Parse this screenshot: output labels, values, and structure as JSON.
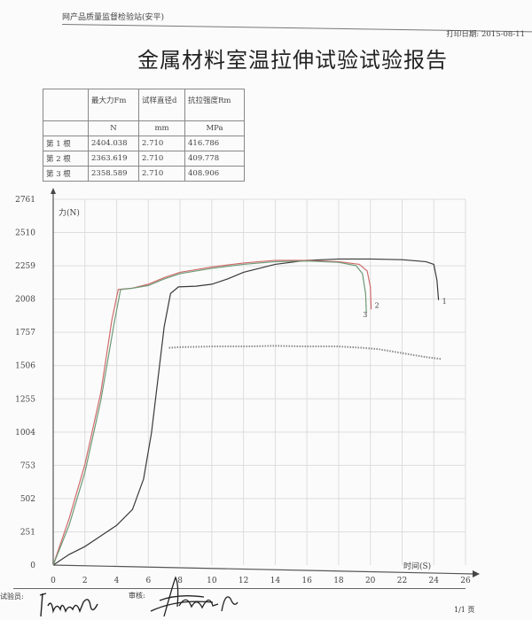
{
  "header": {
    "organization": "网产品质量监督检验站(安平)",
    "print_date": "打印日期: 2015-08-11",
    "title": "金属材料室温拉伸试验试验报告"
  },
  "results_table": {
    "columns": [
      "",
      "最大力Fm",
      "试样直径d",
      "抗拉强度Rm"
    ],
    "units": [
      "",
      "N",
      "mm",
      "MPa"
    ],
    "rows": [
      [
        "第 1 根",
        "2404.038",
        "2.710",
        "416.786"
      ],
      [
        "第 2 根",
        "2363.619",
        "2.710",
        "409.778"
      ],
      [
        "第 3 根",
        "2358.589",
        "2.710",
        "408.906"
      ]
    ]
  },
  "chart_data": {
    "type": "line",
    "xlabel": "时间(S)",
    "ylabel": "力(N)",
    "xlim": [
      0,
      26
    ],
    "ylim": [
      0,
      2761
    ],
    "x_ticks": [
      "0",
      "2",
      "4",
      "6",
      "8",
      "10",
      "12",
      "14",
      "16",
      "18",
      "20",
      "22",
      "24",
      "26"
    ],
    "y_ticks": [
      "0",
      "251",
      "502",
      "753",
      "1004",
      "1255",
      "1506",
      "1757",
      "2008",
      "2259",
      "2510",
      "2761"
    ],
    "grid": true,
    "series": [
      {
        "name": "1",
        "color": "#3a3a3a",
        "x": [
          0,
          1,
          2,
          3,
          4,
          5,
          5.7,
          6.2,
          6.6,
          7.0,
          7.4,
          7.9,
          9,
          10,
          11,
          12,
          14,
          16,
          18,
          20,
          22,
          23.5,
          24.0,
          24.2,
          24.3
        ],
        "y": [
          0,
          80,
          140,
          220,
          300,
          420,
          650,
          1000,
          1400,
          1800,
          2050,
          2100,
          2105,
          2120,
          2160,
          2210,
          2270,
          2300,
          2310,
          2310,
          2305,
          2290,
          2270,
          2150,
          2000
        ]
      },
      {
        "name": "2",
        "color": "#cf6b6b",
        "x": [
          0,
          1,
          2,
          3,
          3.7,
          4.1,
          5,
          6,
          7,
          8,
          10,
          12,
          14,
          16,
          18,
          19.3,
          19.8,
          20.0,
          20.05
        ],
        "y": [
          0,
          350,
          760,
          1300,
          1850,
          2080,
          2090,
          2120,
          2170,
          2210,
          2250,
          2280,
          2300,
          2300,
          2290,
          2270,
          2220,
          2100,
          1930
        ]
      },
      {
        "name": "3",
        "color": "#6e9a78",
        "x": [
          0,
          1,
          2,
          3,
          3.85,
          4.25,
          5,
          6,
          7,
          8,
          10,
          12,
          14,
          16,
          18,
          19.1,
          19.5,
          19.7,
          19.75
        ],
        "y": [
          0,
          300,
          700,
          1240,
          1830,
          2080,
          2090,
          2110,
          2160,
          2200,
          2240,
          2270,
          2290,
          2295,
          2285,
          2260,
          2200,
          2050,
          1900
        ]
      },
      {
        "name": "",
        "color": "#8a8a8a",
        "dotted": true,
        "x": [
          7.3,
          8,
          10,
          12,
          14,
          16,
          18,
          19.5,
          20.5,
          22,
          23.5,
          24.5
        ],
        "y": [
          1640,
          1645,
          1650,
          1650,
          1655,
          1650,
          1650,
          1640,
          1630,
          1600,
          1570,
          1555
        ]
      }
    ]
  },
  "footer": {
    "tester_label": "试验员:",
    "reviewer_label": "审核:",
    "page": "1/1 页"
  }
}
